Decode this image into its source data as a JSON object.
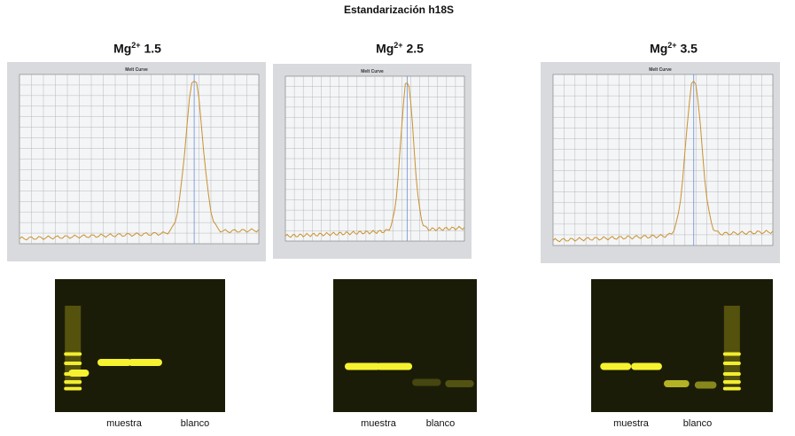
{
  "title": "Estandarización h18S",
  "panels": [
    {
      "label": {
        "base": "Mg",
        "sup": "2+",
        "value": "1.5"
      },
      "plot_title": "Melt Curve",
      "gel_labels": [
        "muestra",
        "blanco"
      ]
    },
    {
      "label": {
        "base": "Mg",
        "sup": "2+",
        "value": "2.5"
      },
      "plot_title": "Melt Curve",
      "gel_labels": [
        "muestra",
        "blanco"
      ]
    },
    {
      "label": {
        "base": "Mg",
        "sup": "2+",
        "value": "3.5"
      },
      "plot_title": "Melt Curve",
      "gel_labels": [
        "muestra",
        "blanco"
      ]
    }
  ]
}
